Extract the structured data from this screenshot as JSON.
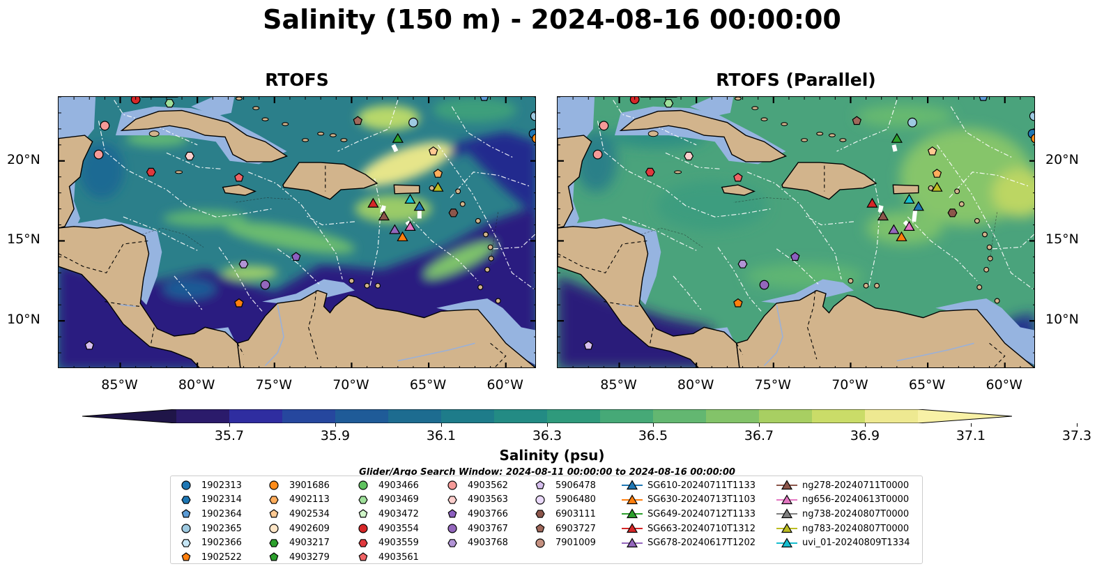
{
  "figure": {
    "title": "Salinity (150 m) - 2024-08-16 00:00:00",
    "panels": [
      {
        "title": "RTOFS",
        "variant": "fresh"
      },
      {
        "title": "RTOFS (Parallel)",
        "variant": "salty"
      }
    ],
    "lon_ticks": [
      "85°W",
      "80°W",
      "75°W",
      "70°W",
      "65°W",
      "60°W"
    ],
    "lat_ticks": [
      "20°N",
      "15°N",
      "10°N"
    ],
    "extent": {
      "lon": [
        -89,
        -58
      ],
      "lat": [
        7,
        24
      ]
    },
    "colorbar": {
      "label": "Salinity (psu)",
      "ticks": [
        "35.7",
        "35.9",
        "36.1",
        "36.3",
        "36.5",
        "36.7",
        "36.9",
        "37.1",
        "37.3"
      ],
      "colors": [
        "#2b1b6b",
        "#2f2da0",
        "#26479e",
        "#1f5b98",
        "#1d6c90",
        "#1e7c8a",
        "#238b84",
        "#2f9a7c",
        "#46a977",
        "#63b771",
        "#83c369",
        "#a8cf62",
        "#cadc68",
        "#eee991"
      ],
      "extend_low": "#1f1548",
      "extend_high": "#f8f1a6"
    },
    "search_window": "Glider/Argo Search Window: 2024-08-11 00:00:00 to 2024-08-16 00:00:00",
    "land_color": "#d2b48c",
    "shelf_color": "#96b4e0"
  },
  "legend": {
    "columns": [
      [
        {
          "label": "1902313",
          "marker": "circle",
          "color": "#1f77b4"
        },
        {
          "label": "1902314",
          "marker": "hexagon",
          "color": "#1f77b4"
        },
        {
          "label": "1902364",
          "marker": "pentagon",
          "color": "#5b9bd5"
        },
        {
          "label": "1902365",
          "marker": "circle",
          "color": "#9ecae1"
        },
        {
          "label": "1902366",
          "marker": "hexagon",
          "color": "#c6e6f5"
        },
        {
          "label": "1902522",
          "marker": "pentagon",
          "color": "#ff7f0e"
        }
      ],
      [
        {
          "label": "3901686",
          "marker": "circle",
          "color": "#ff8c1a"
        },
        {
          "label": "4902113",
          "marker": "hexagon",
          "color": "#ffad5c"
        },
        {
          "label": "4902534",
          "marker": "pentagon",
          "color": "#ffc992"
        },
        {
          "label": "4902609",
          "marker": "circle",
          "color": "#ffe6c7"
        },
        {
          "label": "4903217",
          "marker": "hexagon",
          "color": "#2ca02c"
        },
        {
          "label": "4903279",
          "marker": "pentagon",
          "color": "#2ca02c"
        }
      ],
      [
        {
          "label": "4903466",
          "marker": "circle",
          "color": "#5fc25f"
        },
        {
          "label": "4903469",
          "marker": "hexagon",
          "color": "#9fe09a"
        },
        {
          "label": "4903472",
          "marker": "pentagon",
          "color": "#d0f5c8"
        },
        {
          "label": "4903554",
          "marker": "circle",
          "color": "#d62728"
        },
        {
          "label": "4903559",
          "marker": "hexagon",
          "color": "#e0393e"
        },
        {
          "label": "4903561",
          "marker": "pentagon",
          "color": "#f06466"
        }
      ],
      [
        {
          "label": "4903562",
          "marker": "circle",
          "color": "#f59a98"
        },
        {
          "label": "4903563",
          "marker": "hexagon",
          "color": "#fccfcd"
        },
        {
          "label": "4903766",
          "marker": "pentagon",
          "color": "#8c5fc0"
        },
        {
          "label": "4903767",
          "marker": "circle",
          "color": "#9467bd"
        },
        {
          "label": "4903768",
          "marker": "hexagon",
          "color": "#b294d6"
        }
      ],
      [
        {
          "label": "5906478",
          "marker": "pentagon",
          "color": "#d6bfee"
        },
        {
          "label": "5906480",
          "marker": "circle",
          "color": "#ead9fa"
        },
        {
          "label": "6903111",
          "marker": "hexagon",
          "color": "#8c564b"
        },
        {
          "label": "6903727",
          "marker": "pentagon",
          "color": "#a0685b"
        },
        {
          "label": "7901009",
          "marker": "circle",
          "color": "#c49080"
        }
      ],
      [
        {
          "label": "SG610-20240711T1133",
          "marker": "triangle",
          "color": "#1f77b4"
        },
        {
          "label": "SG630-20240713T1103",
          "marker": "triangle",
          "color": "#ff7f0e"
        },
        {
          "label": "SG649-20240712T1133",
          "marker": "triangle",
          "color": "#2ca02c"
        },
        {
          "label": "SG663-20240710T1312",
          "marker": "triangle",
          "color": "#d62728"
        },
        {
          "label": "SG678-20240617T1202",
          "marker": "triangle",
          "color": "#9467bd"
        }
      ],
      [
        {
          "label": "ng278-20240711T0000",
          "marker": "triangle",
          "color": "#8c564b"
        },
        {
          "label": "ng656-20240613T0000",
          "marker": "triangle",
          "color": "#e377c2"
        },
        {
          "label": "ng738-20240807T0000",
          "marker": "triangle",
          "color": "#7f7f7f"
        },
        {
          "label": "ng783-20240807T0000",
          "marker": "triangle",
          "color": "#bcbd22"
        },
        {
          "label": "uvi_01-20240809T1334",
          "marker": "triangle",
          "color": "#17becf"
        }
      ]
    ]
  },
  "observations": [
    {
      "lon": -84.0,
      "lat": 23.85,
      "marker": "circle",
      "color": "#d62728"
    },
    {
      "lon": -81.8,
      "lat": 23.6,
      "marker": "hexagon",
      "color": "#9fe09a"
    },
    {
      "lon": -86.0,
      "lat": 22.2,
      "marker": "circle",
      "color": "#f59a98"
    },
    {
      "lon": -86.4,
      "lat": 20.4,
      "marker": "circle",
      "color": "#f59a98"
    },
    {
      "lon": -83.0,
      "lat": 19.3,
      "marker": "hexagon",
      "color": "#e0393e"
    },
    {
      "lon": -80.5,
      "lat": 20.3,
      "marker": "hexagon",
      "color": "#fccfcd"
    },
    {
      "lon": -77.3,
      "lat": 18.95,
      "marker": "pentagon",
      "color": "#f06466"
    },
    {
      "lon": -69.6,
      "lat": 22.5,
      "marker": "pentagon",
      "color": "#a0685b"
    },
    {
      "lon": -66.0,
      "lat": 22.4,
      "marker": "circle",
      "color": "#9ecae1"
    },
    {
      "lon": -64.7,
      "lat": 20.6,
      "marker": "pentagon",
      "color": "#ffc992"
    },
    {
      "lon": -64.4,
      "lat": 19.2,
      "marker": "pentagon",
      "color": "#ffad5c"
    },
    {
      "lon": -61.4,
      "lat": 24.0,
      "marker": "pentagon",
      "color": "#5b9bd5"
    },
    {
      "lon": -58.1,
      "lat": 22.8,
      "marker": "circle",
      "color": "#9ecae1"
    },
    {
      "lon": -58.2,
      "lat": 21.7,
      "marker": "circle",
      "color": "#1f77b4"
    },
    {
      "lon": -58.0,
      "lat": 21.4,
      "marker": "circle",
      "color": "#ff8c1a"
    },
    {
      "lon": -63.4,
      "lat": 16.75,
      "marker": "hexagon",
      "color": "#8c564b"
    },
    {
      "lon": -77.0,
      "lat": 13.55,
      "marker": "hexagon",
      "color": "#b294d6"
    },
    {
      "lon": -73.6,
      "lat": 14.0,
      "marker": "pentagon",
      "color": "#8c5fc0"
    },
    {
      "lon": -75.6,
      "lat": 12.25,
      "marker": "circle",
      "color": "#9467bd"
    },
    {
      "lon": -77.3,
      "lat": 11.1,
      "marker": "pentagon",
      "color": "#ff7f0e"
    },
    {
      "lon": -87.0,
      "lat": 8.45,
      "marker": "pentagon",
      "color": "#d6bfee"
    },
    {
      "lon": -67.0,
      "lat": 21.4,
      "marker": "triangle",
      "color": "#2ca02c"
    },
    {
      "lon": -68.6,
      "lat": 17.35,
      "marker": "triangle",
      "color": "#d62728"
    },
    {
      "lon": -67.9,
      "lat": 16.55,
      "marker": "triangle",
      "color": "#8c564b"
    },
    {
      "lon": -67.2,
      "lat": 15.7,
      "marker": "triangle",
      "color": "#9467bd"
    },
    {
      "lon": -66.7,
      "lat": 15.25,
      "marker": "triangle",
      "color": "#ff7f0e"
    },
    {
      "lon": -66.2,
      "lat": 15.9,
      "marker": "triangle",
      "color": "#e377c2"
    },
    {
      "lon": -66.2,
      "lat": 17.6,
      "marker": "triangle",
      "color": "#17becf"
    },
    {
      "lon": -65.6,
      "lat": 17.15,
      "marker": "triangle",
      "color": "#1f77b4"
    },
    {
      "lon": -64.4,
      "lat": 18.35,
      "marker": "triangle",
      "color": "#bcbd22"
    }
  ]
}
